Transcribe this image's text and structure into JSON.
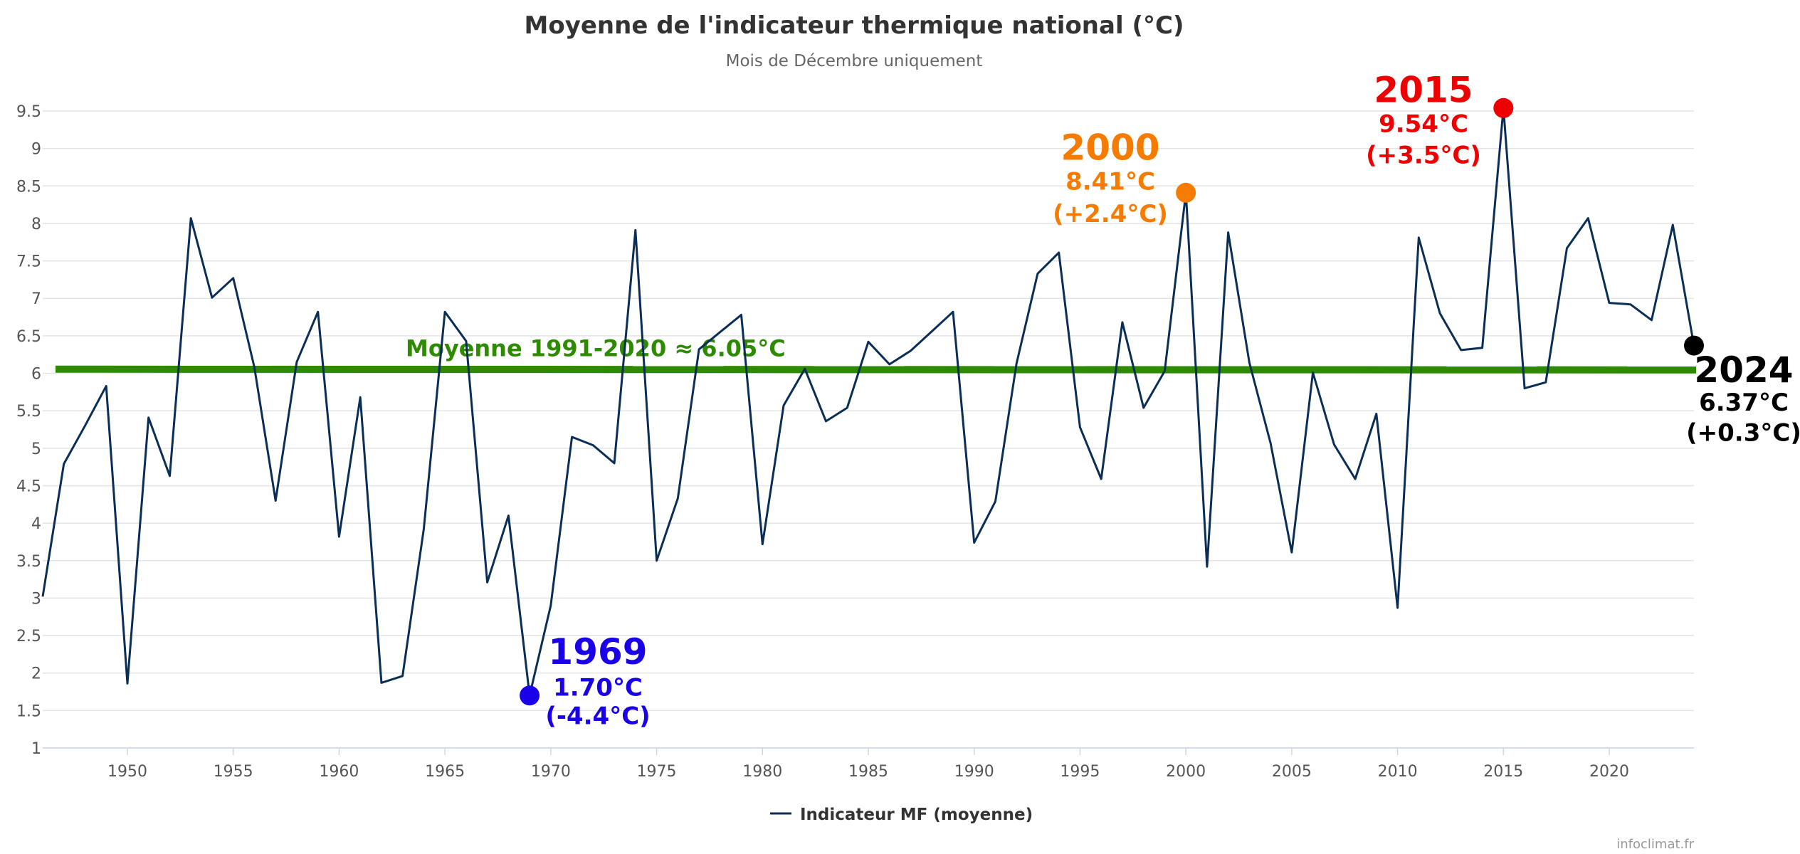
{
  "chart_data": {
    "type": "line",
    "title": "Moyenne de l'indicateur thermique national (°C)",
    "subtitle": "Mois de Décembre uniquement",
    "xlim": [
      1946,
      2024
    ],
    "ylim": [
      1,
      9.5
    ],
    "x_ticks": [
      1950,
      1955,
      1960,
      1965,
      1970,
      1975,
      1980,
      1985,
      1990,
      1995,
      2000,
      2005,
      2010,
      2015,
      2020
    ],
    "y_ticks": [
      1,
      1.5,
      2,
      2.5,
      3,
      3.5,
      4,
      4.5,
      5,
      5.5,
      6,
      6.5,
      7,
      7.5,
      8,
      8.5,
      9,
      9.5
    ],
    "grid": true,
    "series": [
      {
        "name": "Indicateur MF (moyenne)",
        "color": "#0b2e57",
        "x": [
          1946,
          1947,
          1948,
          1949,
          1950,
          1951,
          1952,
          1953,
          1954,
          1955,
          1956,
          1957,
          1958,
          1959,
          1960,
          1961,
          1962,
          1963,
          1964,
          1965,
          1966,
          1967,
          1968,
          1969,
          1970,
          1971,
          1972,
          1973,
          1974,
          1975,
          1976,
          1977,
          1978,
          1979,
          1980,
          1981,
          1982,
          1983,
          1984,
          1985,
          1986,
          1987,
          1988,
          1989,
          1990,
          1991,
          1992,
          1993,
          1994,
          1995,
          1996,
          1997,
          1998,
          1999,
          2000,
          2001,
          2002,
          2003,
          2004,
          2005,
          2006,
          2007,
          2008,
          2009,
          2010,
          2011,
          2012,
          2013,
          2014,
          2015,
          2016,
          2017,
          2018,
          2019,
          2020,
          2021,
          2022,
          2023,
          2024
        ],
        "values": [
          3.02,
          4.79,
          5.3,
          5.83,
          1.86,
          5.41,
          4.63,
          8.07,
          7.01,
          7.27,
          6.08,
          4.3,
          6.15,
          6.82,
          3.82,
          5.68,
          1.87,
          1.96,
          3.92,
          6.82,
          6.43,
          3.21,
          4.1,
          1.7,
          2.9,
          5.15,
          5.04,
          4.8,
          7.91,
          3.5,
          4.33,
          6.32,
          6.55,
          6.78,
          3.72,
          5.57,
          6.06,
          5.36,
          5.54,
          6.42,
          6.12,
          6.3,
          6.56,
          6.82,
          3.74,
          4.29,
          6.13,
          7.33,
          7.61,
          5.28,
          4.59,
          6.68,
          5.54,
          6.03,
          8.41,
          3.42,
          7.88,
          6.14,
          5.07,
          3.61,
          6.01,
          5.05,
          4.59,
          5.46,
          2.87,
          7.81,
          6.8,
          6.31,
          6.34,
          9.54,
          5.8,
          5.88,
          7.67,
          8.07,
          6.94,
          6.92,
          6.71,
          7.98,
          6.37
        ]
      }
    ],
    "reference_line": {
      "label": "Moyenne 1991-2020  ≈ 6.05°C",
      "value": 6.05,
      "color": "#2e8b00"
    },
    "highlights": [
      {
        "year": 1969,
        "value": 1.7,
        "color": "#1a00e8",
        "year_label": "1969",
        "value_label": "1.70°C",
        "delta_label": "(-4.4°C)"
      },
      {
        "year": 2000,
        "value": 8.41,
        "color": "#f57c00",
        "year_label": "2000",
        "value_label": "8.41°C",
        "delta_label": "(+2.4°C)"
      },
      {
        "year": 2015,
        "value": 9.54,
        "color": "#ee0000",
        "year_label": "2015",
        "value_label": "9.54°C",
        "delta_label": "(+3.5°C)"
      },
      {
        "year": 2024,
        "value": 6.37,
        "color": "#000000",
        "year_label": "2024",
        "value_label": "6.37°C",
        "delta_label": "(+0.3°C)"
      }
    ],
    "legend": {
      "label": "Indicateur MF (moyenne)",
      "position": "bottom-center"
    },
    "credits": "infoclimat.fr"
  }
}
